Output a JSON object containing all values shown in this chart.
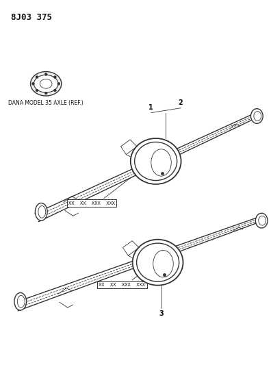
{
  "title": "8J03 375",
  "background_color": "#ffffff",
  "line_color": "#333333",
  "text_color": "#111111",
  "dana_label": "DANA MODEL 35 AXLE (REF.)",
  "part_numbers_1": "XX  XX  XXX  XXX",
  "part_numbers_2": "XX  XX  XXX  XXX",
  "callout_1": "1",
  "callout_2": "2",
  "callout_3": "3",
  "fig_width": 3.96,
  "fig_height": 5.33,
  "dpi": 100
}
